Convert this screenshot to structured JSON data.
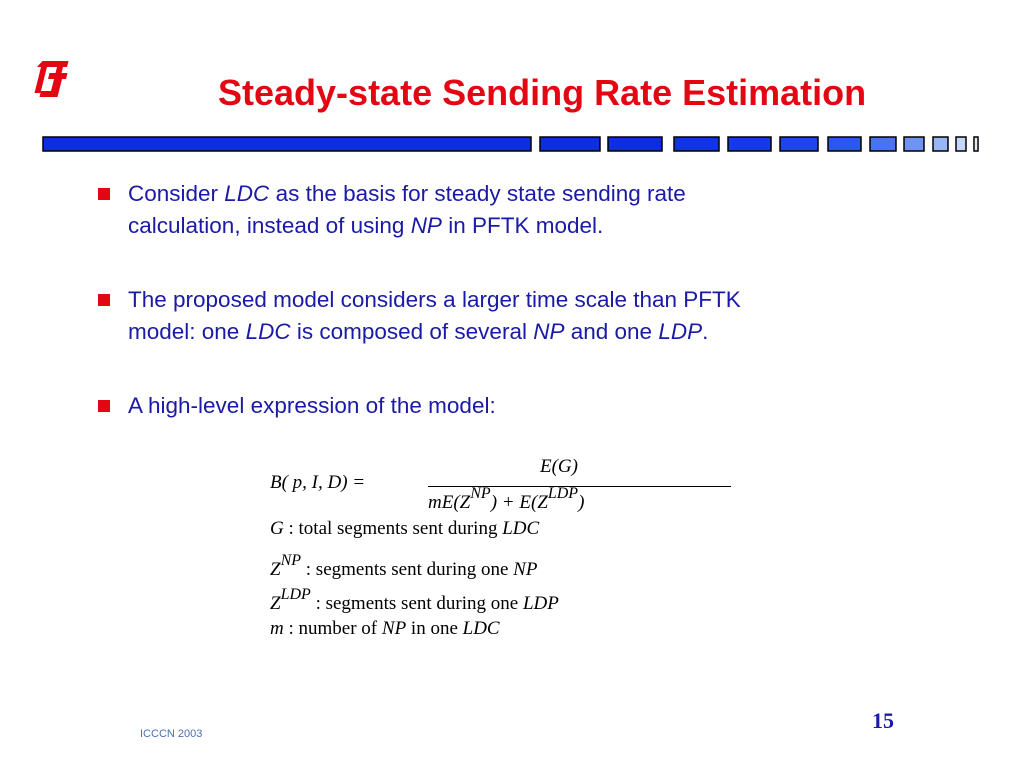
{
  "slide": {
    "title": "Steady-state Sending Rate Estimation",
    "footer": "ICCCN 2003",
    "page_number": "15"
  },
  "bullets": [
    {
      "line1": {
        "a": "Consider ",
        "b": "LDC",
        "c": " as the basis for steady state sending rate"
      },
      "line2": {
        "a": "calculation, instead of using ",
        "b": "NP",
        "c": " in PFTK model."
      }
    },
    {
      "line1": {
        "a": "The proposed model considers a larger time scale than PFTK"
      },
      "line2": {
        "a": "model: one ",
        "b": "LDC",
        "c": " is composed of several ",
        "d": "NP",
        "e": " and one ",
        "f": "LDP",
        "g": "."
      }
    },
    {
      "line1": {
        "a": "A high-level expression of the model:"
      }
    }
  ],
  "formula": {
    "lhs": "B( p, I, D) =",
    "numerator": "E(G)",
    "denominator": {
      "a": "mE(Z",
      "sup1": "NP",
      "b": ") + E(Z",
      "sup2": "LDP",
      "c": ")"
    },
    "definitions": [
      {
        "sym": "G",
        "sup": "",
        "text": " :  total segments sent during ",
        "ref": "LDC"
      },
      {
        "sym": "Z",
        "sup": "NP",
        "text": " : segments sent during one ",
        "ref": "NP"
      },
      {
        "sym": "Z",
        "sup": "LDP",
        "text": " : segments sent during one ",
        "ref": "LDP"
      },
      {
        "sym": "m",
        "sup": "",
        "text": " : number of  ",
        "ref": "NP",
        "tail": " in one ",
        "ref2": "LDC"
      }
    ]
  },
  "colors": {
    "title": "#e30613",
    "text": "#1a1aa6",
    "bullet_marker": "#e30613",
    "divider_fill": "#1030e0",
    "logo": "#e30613"
  }
}
